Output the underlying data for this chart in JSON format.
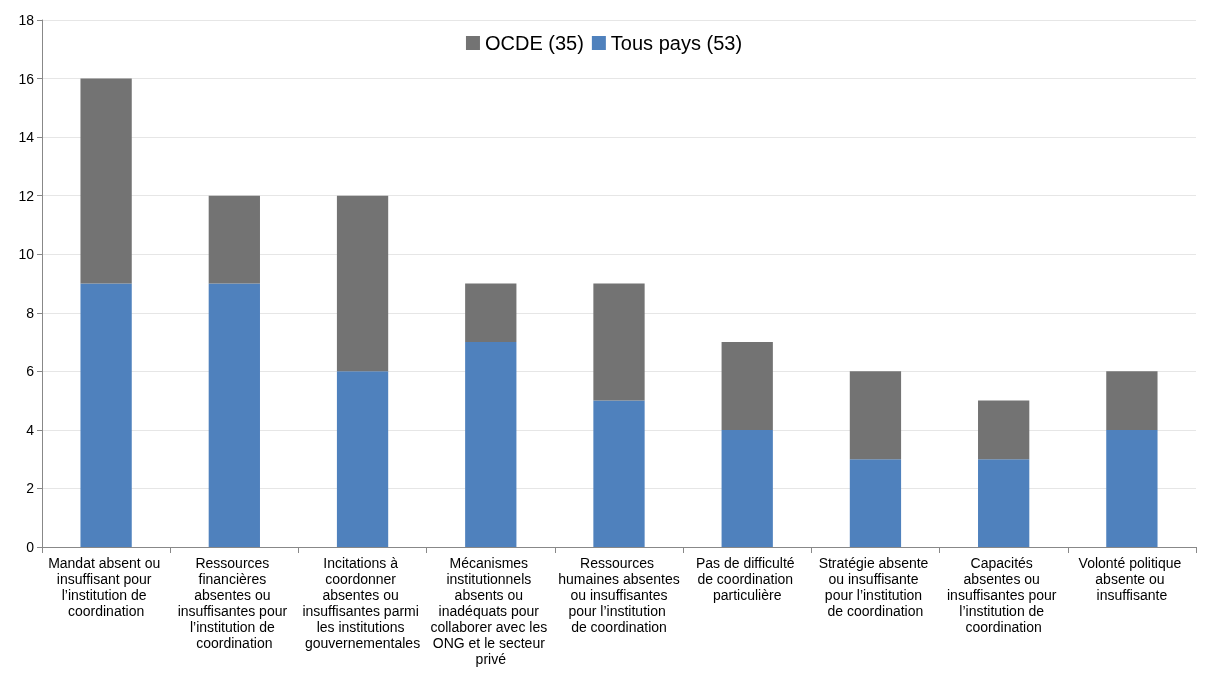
{
  "chart_data": {
    "type": "bar",
    "stacked": true,
    "categories": [
      "Mandat absent ou insuffisant pour l’institution de coordination",
      "Ressources financières absentes ou insuffisantes pour l’institution de coordination",
      "Incitations à coordonner absentes ou insuffisantes parmi les institutions gouvernementales",
      "Mécanismes institutionnels absents ou inadéquats pour collaborer avec les ONG et le secteur privé",
      "Ressources humaines absentes ou insuffisantes pour l’institution de coordination",
      "Pas de difficulté de coordination particulière",
      "Stratégie absente ou insuffisante pour l’institution de coordination",
      "Capacités absentes ou insuffisantes pour l’institution de coordination",
      "Volonté politique absente ou insuffisante"
    ],
    "series": [
      {
        "name": "Tous pays (53)",
        "color": "#4f81bd",
        "values": [
          9,
          9,
          6,
          7,
          5,
          4,
          3,
          3,
          4
        ]
      },
      {
        "name": "OCDE (35)",
        "color": "#737373",
        "values": [
          7,
          3,
          6,
          2,
          4,
          3,
          3,
          2,
          2
        ]
      }
    ],
    "ylim": [
      0,
      18
    ],
    "yticks": [
      0,
      2,
      4,
      6,
      8,
      10,
      12,
      14,
      16,
      18
    ],
    "grid": "y",
    "legend": "top"
  }
}
